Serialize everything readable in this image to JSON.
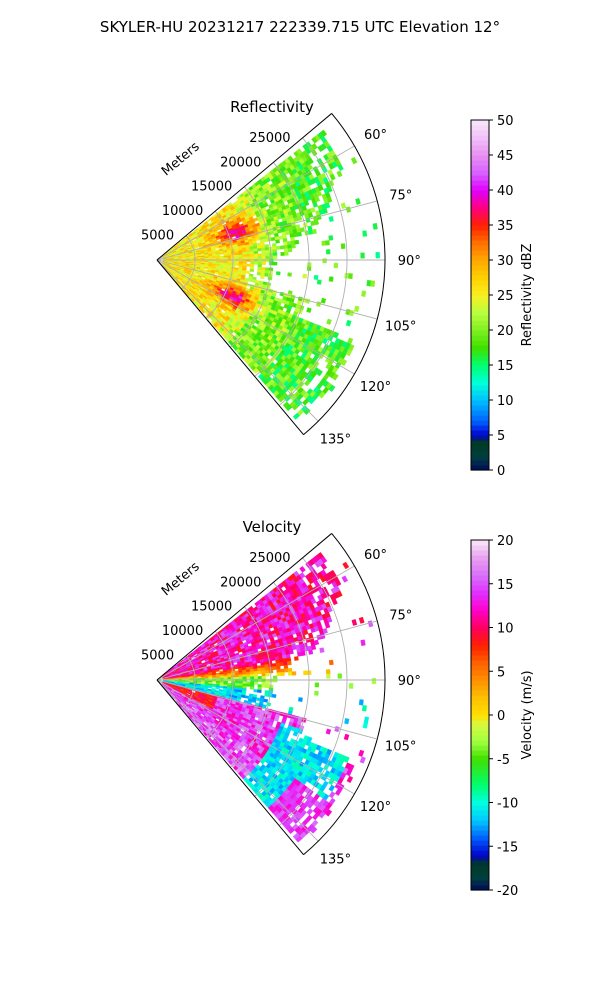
{
  "figure": {
    "suptitle": "SKYLER-HU  20231217  222339.715 UTC Elevation 12°"
  },
  "chart_data": [
    {
      "type": "polar-sector",
      "title": "Reflectivity",
      "radial_axis_label": "Meters",
      "radial_ticks": [
        "5000",
        "10000",
        "15000",
        "20000",
        "25000"
      ],
      "radial_range": [
        0,
        30000
      ],
      "azimuth_range_deg": [
        50,
        140
      ],
      "azimuth_ticks": [
        "60°",
        "75°",
        "90°",
        "105°",
        "120°",
        "135°"
      ],
      "grid": true,
      "colorbar": {
        "label": "Reflectivity dBZ",
        "range": [
          0,
          50
        ],
        "ticks": [
          "0",
          "5",
          "10",
          "15",
          "20",
          "25",
          "30",
          "35",
          "40",
          "45",
          "50"
        ],
        "placement": "right"
      },
      "field_description": "20–30 dBZ throughout the sector, with 35–40 dBZ cores near 11000 m at ~70° and ~115°; 15–25 dBZ echoes extend to ~27000 m at the sector edges."
    },
    {
      "type": "polar-sector",
      "title": "Velocity",
      "radial_axis_label": "Meters",
      "radial_ticks": [
        "5000",
        "10000",
        "15000",
        "20000",
        "25000"
      ],
      "radial_range": [
        0,
        30000
      ],
      "azimuth_range_deg": [
        50,
        140
      ],
      "azimuth_ticks": [
        "60°",
        "75°",
        "90°",
        "105°",
        "120°",
        "135°"
      ],
      "grid": true,
      "colorbar": {
        "label": "Velocity (m/s)",
        "range": [
          -20,
          20
        ],
        "ticks": [
          "-20",
          "-15",
          "-10",
          "-5",
          "0",
          "5",
          "10",
          "15",
          "20"
        ],
        "placement": "right"
      },
      "field_description": "Outbound 10–17 m/s from 55–80° azimuth, near zero to -8 m/s at 85–95°, inbound -8 to -14 m/s at 95–105°, outbound 10–17 m/s at 105–125° near the radar, inbound -10 to -14 m/s at far range 115–130°."
    }
  ]
}
